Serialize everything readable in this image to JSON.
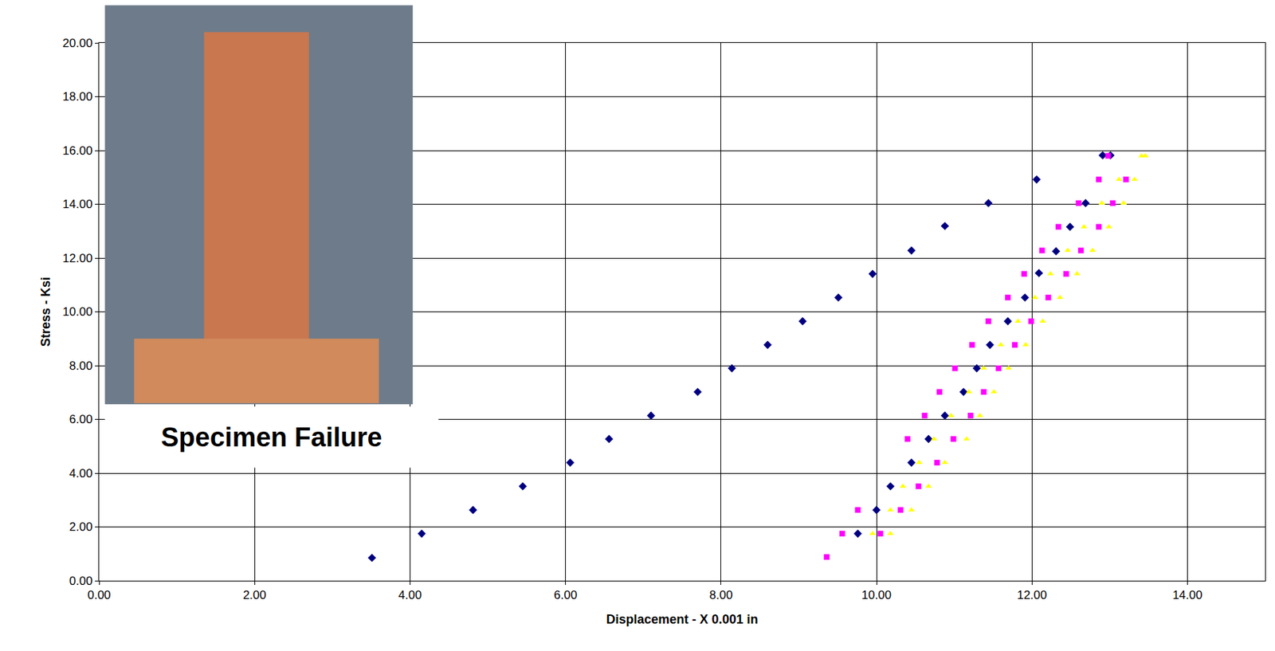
{
  "chart_data": {
    "type": "scatter",
    "x_label": "Displacement - X 0.001 in",
    "y_label": "Stress - Ksi",
    "annotations": [
      "Specimen Failure"
    ],
    "xlim": [
      0,
      15
    ],
    "ylim": [
      0,
      20
    ],
    "xticks": [
      {
        "value": 0,
        "label": "0.00"
      },
      {
        "value": 2,
        "label": "2.00"
      },
      {
        "value": 4,
        "label": "4.00"
      },
      {
        "value": 6,
        "label": "6.00"
      },
      {
        "value": 8,
        "label": "8.00"
      },
      {
        "value": 10,
        "label": "10.00"
      },
      {
        "value": 12,
        "label": "12.00"
      },
      {
        "value": 14,
        "label": "14.00"
      }
    ],
    "yticks": [
      {
        "value": 0,
        "label": "0.00"
      },
      {
        "value": 2,
        "label": "2.00"
      },
      {
        "value": 4,
        "label": "4.00"
      },
      {
        "value": 6,
        "label": "6.00"
      },
      {
        "value": 8,
        "label": "8.00"
      },
      {
        "value": 10,
        "label": "10.00"
      },
      {
        "value": 12,
        "label": "12.00"
      },
      {
        "value": 14,
        "label": "14.00"
      },
      {
        "value": 16,
        "label": "16.00"
      },
      {
        "value": 18,
        "label": "18.00"
      },
      {
        "value": 20,
        "label": "20.00"
      }
    ],
    "grid": true,
    "series": [
      {
        "color": "#000080",
        "marker": "diamond",
        "x": [
          3.51,
          4.15,
          4.81,
          5.45,
          6.06,
          6.56,
          7.1,
          7.7,
          8.14,
          8.6,
          9.05,
          9.51,
          9.95,
          10.45,
          10.88,
          11.44,
          12.06,
          12.91,
          13.01,
          12.69,
          12.49,
          12.31,
          12.09,
          11.91,
          11.69,
          11.46,
          11.29,
          11.12,
          10.88,
          10.67,
          10.45,
          10.18,
          10.0,
          9.76
        ],
        "values": [
          0.85,
          1.75,
          2.63,
          3.51,
          4.39,
          5.27,
          6.14,
          7.02,
          7.9,
          8.77,
          9.65,
          10.53,
          11.41,
          12.28,
          13.19,
          14.04,
          14.92,
          15.82,
          15.82,
          14.04,
          13.16,
          12.25,
          11.44,
          10.53,
          9.65,
          8.77,
          7.9,
          7.02,
          6.14,
          5.27,
          4.39,
          3.51,
          2.63,
          1.75
        ]
      },
      {
        "color": "#ff00ff",
        "marker": "square",
        "x": [
          9.36,
          9.56,
          9.76,
          10.54,
          10.78,
          10.4,
          10.62,
          10.81,
          11.01,
          11.23,
          11.44,
          11.69,
          11.9,
          12.13,
          12.34,
          12.6,
          12.86,
          12.98,
          13.21,
          13.04,
          12.86,
          12.63,
          12.44,
          12.21,
          11.99,
          11.78,
          11.57,
          11.38,
          11.21,
          10.99,
          10.31,
          10.05
        ],
        "values": [
          0.88,
          1.75,
          2.63,
          3.51,
          4.39,
          5.27,
          6.14,
          7.02,
          7.9,
          8.77,
          9.65,
          10.53,
          11.41,
          12.28,
          13.16,
          14.04,
          14.92,
          15.8,
          14.92,
          14.04,
          13.16,
          12.28,
          11.41,
          10.53,
          9.65,
          8.77,
          7.9,
          7.02,
          6.14,
          5.27,
          2.63,
          1.75
        ]
      },
      {
        "color": "#ffff00",
        "marker": "triangle-up",
        "x": [
          9.95,
          10.18,
          10.34,
          10.55,
          10.74,
          10.96,
          11.19,
          11.38,
          11.6,
          11.82,
          12.04,
          12.24,
          12.46,
          12.67,
          12.9,
          13.12,
          13.41,
          13.46,
          13.32,
          13.18,
          12.99,
          12.78,
          12.58,
          12.36,
          12.14,
          11.92,
          11.7,
          11.51,
          11.33,
          11.16,
          10.88,
          10.67,
          10.45,
          10.18
        ],
        "values": [
          1.75,
          2.63,
          3.51,
          4.39,
          5.27,
          6.14,
          7.02,
          7.9,
          8.77,
          9.65,
          10.53,
          11.41,
          12.28,
          13.16,
          14.04,
          14.92,
          15.8,
          15.8,
          14.92,
          14.04,
          13.16,
          12.28,
          11.41,
          10.53,
          9.65,
          8.77,
          7.9,
          7.02,
          6.14,
          5.27,
          4.39,
          3.51,
          2.63,
          1.75
        ]
      }
    ]
  }
}
